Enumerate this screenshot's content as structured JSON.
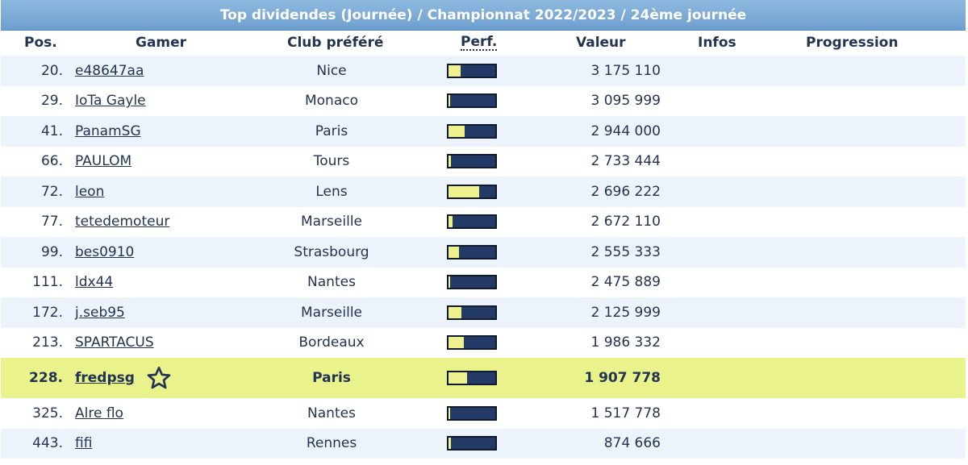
{
  "title": "Top dividendes (Journée) / Championnat 2022/2023 / 24ème journée",
  "headers": {
    "pos": "Pos.",
    "gamer": "Gamer",
    "club": "Club préféré",
    "perf": "Perf.",
    "valeur": "Valeur",
    "infos": "Infos",
    "progression": "Progression"
  },
  "rows": [
    {
      "pos": "20.",
      "gamer": "e48647aa",
      "club": "Nice",
      "perf": 0.25,
      "valeur": "3 175 110"
    },
    {
      "pos": "29.",
      "gamer": "IoTa Gayle",
      "club": "Monaco",
      "perf": 0.03,
      "valeur": "3 095 999"
    },
    {
      "pos": "41.",
      "gamer": "PanamSG",
      "club": "Paris",
      "perf": 0.35,
      "valeur": "2 944 000"
    },
    {
      "pos": "66.",
      "gamer": "PAULOM",
      "club": "Tours",
      "perf": 0.06,
      "valeur": "2 733 444"
    },
    {
      "pos": "72.",
      "gamer": "leon",
      "club": "Lens",
      "perf": 0.65,
      "valeur": "2 696 222"
    },
    {
      "pos": "77.",
      "gamer": "tetedemoteur",
      "club": "Marseille",
      "perf": 0.08,
      "valeur": "2 672 110"
    },
    {
      "pos": "99.",
      "gamer": "bes0910",
      "club": "Strasbourg",
      "perf": 0.22,
      "valeur": "2 555 333"
    },
    {
      "pos": "111.",
      "gamer": "ldx44",
      "club": "Nantes",
      "perf": 0.03,
      "valeur": "2 475 889"
    },
    {
      "pos": "172.",
      "gamer": "j.seb95",
      "club": "Marseille",
      "perf": 0.28,
      "valeur": "2 125 999"
    },
    {
      "pos": "213.",
      "gamer": "SPARTACUS",
      "club": "Bordeaux",
      "perf": 0.33,
      "valeur": "1 986 332"
    },
    {
      "pos": "228.",
      "gamer": "fredpsg",
      "club": "Paris",
      "perf": 0.4,
      "valeur": "1 907 778",
      "highlight": true,
      "icon": "star-icon"
    },
    {
      "pos": "325.",
      "gamer": "Alre flo",
      "club": "Nantes",
      "perf": 0.03,
      "valeur": "1 517 778"
    },
    {
      "pos": "443.",
      "gamer": "fifi",
      "club": "Rennes",
      "perf": 0.06,
      "valeur": "874 666"
    }
  ],
  "colors": {
    "title_bg": "#7eaad6",
    "alt_row": "#edf3fb",
    "highlight_row": "#eaf28c",
    "perf_bar": "#233a66",
    "perf_fill": "#eef28e"
  }
}
